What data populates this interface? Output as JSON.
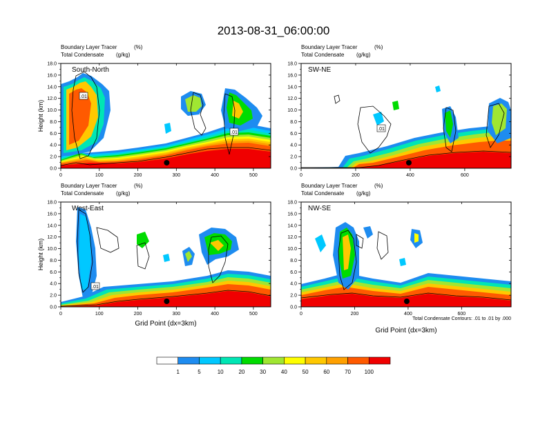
{
  "title": "2013-08-31_06:00:00",
  "chart_data": [
    {
      "type": "heatmap",
      "name": "South-North",
      "label": "South-North",
      "field_label": "Boundary Layer Tracer",
      "field_unit": "(%)",
      "contour_label": "Total Condensate",
      "contour_unit": "(g/kg)",
      "ylabel": "Height (km)",
      "xlabel": "",
      "xlim": [
        0,
        545
      ],
      "ylim": [
        0,
        18
      ],
      "xticks": [
        "0",
        "100",
        "200",
        "300",
        "400",
        "500"
      ],
      "yticks": [
        "0.0",
        "2.0",
        "4.0",
        "6.0",
        "8.0",
        "10.0",
        "12.0",
        "14.0",
        "16.0",
        "18.0"
      ],
      "marker_x": 275,
      "contour_tags": [
        {
          "text": ".01",
          "x": 65,
          "y": 12.2
        },
        {
          "text": ".01",
          "x": 440,
          "y": 6.2
        }
      ]
    },
    {
      "type": "heatmap",
      "name": "SW-NE",
      "label": "SW-NE",
      "field_label": "Boundary Layer Tracer",
      "field_unit": "(%)",
      "contour_label": "Total Condensate",
      "contour_unit": "(g/kg)",
      "ylabel": "",
      "xlabel": "",
      "xlim": [
        0,
        770
      ],
      "ylim": [
        0,
        18
      ],
      "xticks": [
        "0",
        "200",
        "400",
        "600"
      ],
      "yticks": [
        "0.0",
        "2.0",
        "4.0",
        "6.0",
        "8.0",
        "10.0",
        "12.0",
        "14.0",
        "16.0",
        "18.0"
      ],
      "marker_x": 395,
      "contour_tags": [
        {
          "text": ".01",
          "x": 320,
          "y": 7.0
        }
      ]
    },
    {
      "type": "heatmap",
      "name": "West-East",
      "label": "West-East",
      "field_label": "Boundary Layer Tracer",
      "field_unit": "(%)",
      "contour_label": "Total Condensate",
      "contour_unit": "(g/kg)",
      "ylabel": "Height (km)",
      "xlabel": "Grid Point (dx=3km)",
      "xlim": [
        0,
        545
      ],
      "ylim": [
        0,
        18
      ],
      "xticks": [
        "0",
        "100",
        "200",
        "300",
        "400",
        "500"
      ],
      "yticks": [
        "0.0",
        "2.0",
        "4.0",
        "6.0",
        "8.0",
        "10.0",
        "12.0",
        "14.0",
        "16.0",
        "18.0"
      ],
      "marker_x": 275,
      "contour_tags": [
        {
          "text": ".01",
          "x": 90,
          "y": 3.5
        }
      ]
    },
    {
      "type": "heatmap",
      "name": "NW-SE",
      "label": "NW-SE",
      "field_label": "Boundary Layer Tracer",
      "field_unit": "(%)",
      "contour_label": "Total Condensate",
      "contour_unit": "(g/kg)",
      "ylabel": "",
      "xlabel": "Grid Point (dx=3km)",
      "xlim": [
        0,
        785
      ],
      "ylim": [
        0,
        18
      ],
      "xticks": [
        "0",
        "200",
        "400",
        "600"
      ],
      "yticks": [
        "0.0",
        "2.0",
        "4.0",
        "6.0",
        "8.0",
        "10.0",
        "12.0",
        "14.0",
        "16.0",
        "18.0"
      ],
      "marker_x": 395,
      "contour_tags": []
    }
  ],
  "contour_note": "Total Condensate Contours: .01 to .01 by .000",
  "colorbar": {
    "levels": [
      "1",
      "5",
      "10",
      "20",
      "30",
      "40",
      "50",
      "60",
      "70",
      "100"
    ],
    "colors": [
      "#ffffff",
      "#1e8cf0",
      "#00c8ff",
      "#00e6b4",
      "#00dc00",
      "#a0e632",
      "#ffff00",
      "#ffc800",
      "#ffa000",
      "#ff5a00",
      "#f00000"
    ]
  }
}
